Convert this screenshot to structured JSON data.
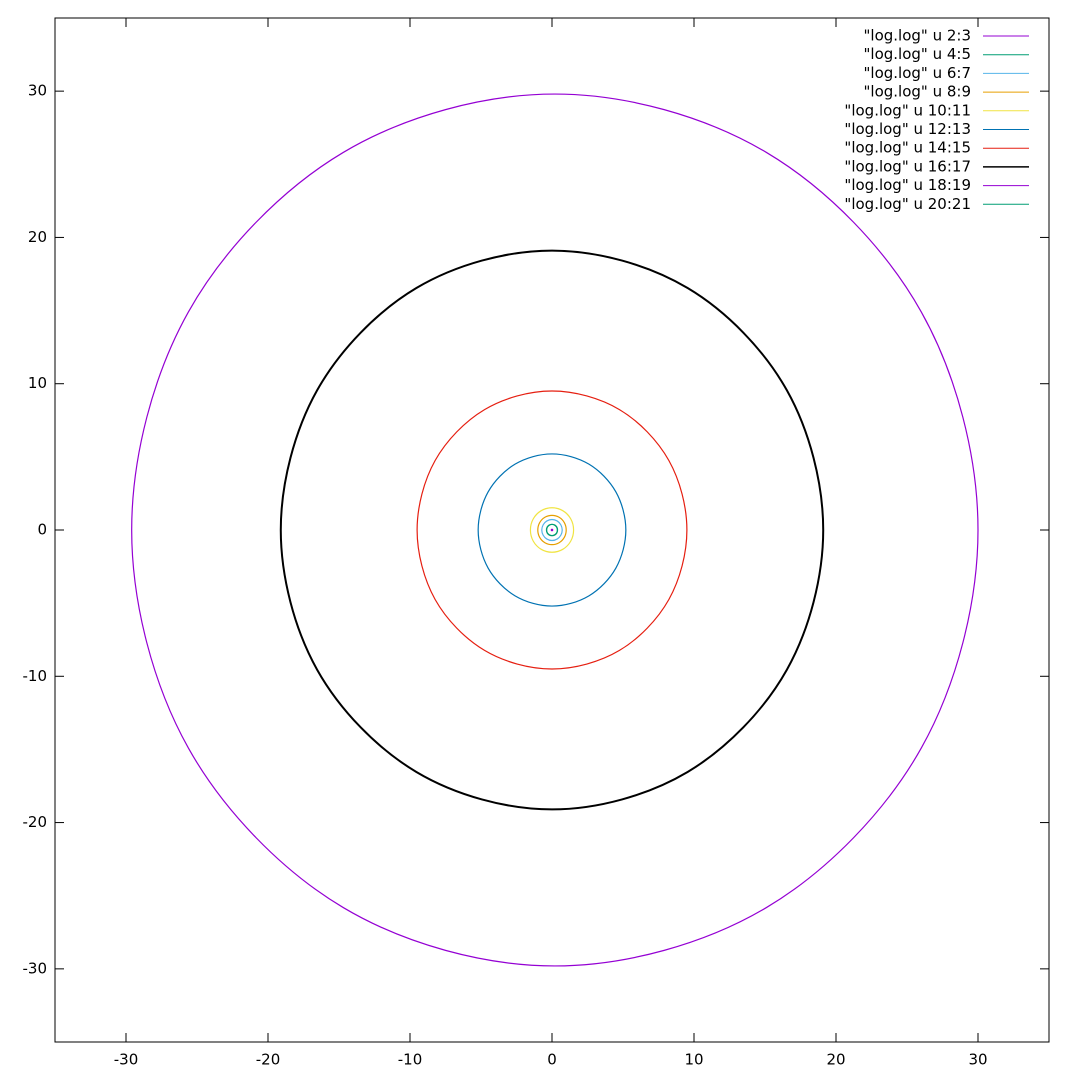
{
  "chart_data": {
    "type": "line",
    "xlim": [
      -35,
      35
    ],
    "ylim": [
      -35,
      35
    ],
    "xticks": [
      -30,
      -20,
      -10,
      0,
      10,
      20,
      30
    ],
    "yticks": [
      -30,
      -20,
      -10,
      0,
      10,
      20,
      30
    ],
    "legend": "top-right",
    "series": [
      {
        "name": "\"log.log\" u 2:3",
        "color": "#9400d3",
        "x": [
          0.05,
          0.04,
          0.03,
          0,
          -0.03,
          -0.04,
          -0.05,
          -0.04,
          -0.03,
          0,
          0.03,
          0.04,
          0.05
        ],
        "values": [
          0,
          0.03,
          0.04,
          0.05,
          0.04,
          0.03,
          0,
          -0.03,
          -0.04,
          -0.05,
          -0.04,
          -0.03,
          0
        ]
      },
      {
        "name": "\"log.log\" u 4:5",
        "color": "#009e73",
        "x": [
          0.39,
          0.34,
          0.2,
          0,
          -0.2,
          -0.34,
          -0.39,
          -0.34,
          -0.2,
          0,
          0.2,
          0.34,
          0.39
        ],
        "values": [
          0,
          0.2,
          0.34,
          0.39,
          0.34,
          0.2,
          0,
          -0.2,
          -0.34,
          -0.39,
          -0.34,
          -0.2,
          0
        ]
      },
      {
        "name": "\"log.log\" u 6:7",
        "color": "#56b4e9",
        "x": [
          0.72,
          0.62,
          0.36,
          0,
          -0.36,
          -0.62,
          -0.72,
          -0.62,
          -0.36,
          0,
          0.36,
          0.62,
          0.72
        ],
        "values": [
          0,
          0.36,
          0.62,
          0.72,
          0.62,
          0.36,
          0,
          -0.36,
          -0.62,
          -0.72,
          -0.62,
          -0.36,
          0
        ]
      },
      {
        "name": "\"log.log\" u 8:9",
        "color": "#e69f00",
        "x": [
          1,
          0.87,
          0.5,
          0,
          -0.5,
          -0.87,
          -1,
          -0.87,
          -0.5,
          0,
          0.5,
          0.87,
          1
        ],
        "values": [
          0,
          0.5,
          0.87,
          1,
          0.87,
          0.5,
          0,
          -0.5,
          -0.87,
          -1,
          -0.87,
          -0.5,
          0
        ]
      },
      {
        "name": "\"log.log\" u 10:11",
        "color": "#f0e442",
        "x": [
          1.52,
          1.32,
          0.76,
          0,
          -0.76,
          -1.32,
          -1.52,
          -1.32,
          -0.76,
          0,
          0.76,
          1.32,
          1.52
        ],
        "values": [
          0,
          0.76,
          1.32,
          1.52,
          1.32,
          0.76,
          0,
          -0.76,
          -1.32,
          -1.52,
          -1.32,
          -0.76,
          0
        ]
      },
      {
        "name": "\"log.log\" u 12:13",
        "color": "#0072b2",
        "x": [
          5.2,
          4.5,
          2.6,
          0,
          -2.6,
          -4.5,
          -5.2,
          -4.5,
          -2.6,
          0,
          2.6,
          4.5,
          5.2
        ],
        "values": [
          0,
          2.6,
          4.5,
          5.2,
          4.5,
          2.6,
          0,
          -2.6,
          -4.5,
          -5.2,
          -4.5,
          -2.6,
          0
        ]
      },
      {
        "name": "\"log.log\" u 14:15",
        "color": "#e51e10",
        "x": [
          9.5,
          8.23,
          4.75,
          0,
          -4.75,
          -8.23,
          -9.5,
          -8.23,
          -4.75,
          0,
          4.75,
          8.23,
          9.5
        ],
        "values": [
          0,
          4.75,
          8.23,
          9.5,
          8.23,
          4.75,
          0,
          -4.75,
          -8.23,
          -9.5,
          -8.23,
          -4.75,
          0
        ]
      },
      {
        "name": "\"log.log\" u 16:17",
        "color": "#000000",
        "x": [
          19.1,
          16.54,
          9.55,
          0,
          -9.55,
          -16.54,
          -19.1,
          -16.54,
          -9.55,
          0,
          9.55,
          16.54,
          19.1
        ],
        "values": [
          0,
          9.55,
          16.54,
          19.1,
          16.54,
          9.55,
          0,
          -9.55,
          -16.54,
          -19.1,
          -16.54,
          -9.55,
          0
        ]
      },
      {
        "name": "\"log.log\" u 18:19",
        "color": "#9400d3",
        "x": [
          30,
          26.01,
          15.1,
          0.2,
          -14.7,
          -25.61,
          -29.6,
          -25.61,
          -14.7,
          0.2,
          15.1,
          26.01,
          30
        ],
        "values": [
          0,
          14.9,
          25.81,
          29.8,
          25.81,
          14.9,
          0,
          -14.9,
          -25.81,
          -29.8,
          -25.81,
          -14.9,
          0
        ]
      },
      {
        "name": "\"log.log\" u 20:21",
        "color": "#009e73",
        "x": [
          0.38,
          0.33,
          0.19,
          0,
          -0.19,
          -0.33,
          -0.38,
          -0.33,
          -0.19,
          0,
          0.19,
          0.33,
          0.38
        ],
        "values": [
          0,
          0.19,
          0.33,
          0.38,
          0.33,
          0.19,
          0,
          -0.19,
          -0.33,
          -0.38,
          -0.33,
          -0.19,
          0
        ]
      }
    ]
  }
}
